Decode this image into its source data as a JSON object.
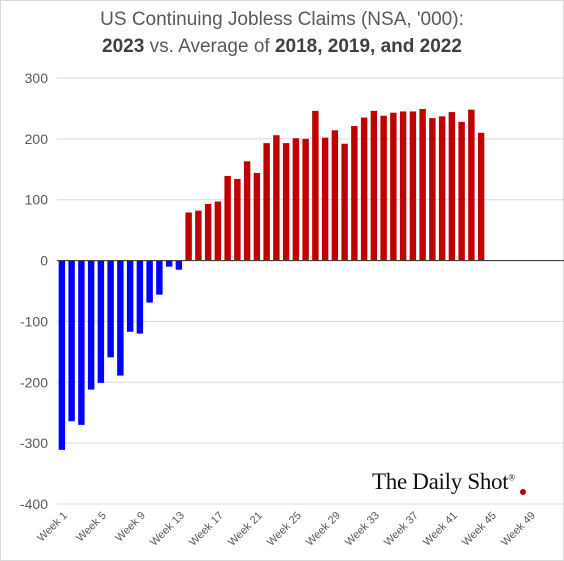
{
  "title": {
    "line1": "US Continuing Jobless Claims (NSA, '000):",
    "line2_part1": "2023",
    "line2_part2": " vs. Average of ",
    "line2_part3": "2018, 2019, and 2022"
  },
  "brand": {
    "text": "The Daily Shot",
    "mark": "®"
  },
  "chart_data": {
    "type": "bar",
    "ylim": [
      -400,
      300
    ],
    "yticks": [
      300,
      200,
      100,
      0,
      -100,
      -200,
      -300,
      -400
    ],
    "grid": true,
    "x_tick_labels": [
      "Week 1",
      "Week 5",
      "Week 9",
      "Week 13",
      "Week 17",
      "Week 21",
      "Week 25",
      "Week 29",
      "Week 33",
      "Week 37",
      "Week 41",
      "Week 45",
      "Week 49"
    ],
    "x_tick_weeks": [
      1,
      5,
      9,
      13,
      17,
      21,
      25,
      29,
      33,
      37,
      41,
      45,
      49
    ],
    "total_weeks": 52,
    "colors": {
      "negative": "#0000ff",
      "positive": "#c00000"
    },
    "weeks": [
      1,
      2,
      3,
      4,
      5,
      6,
      7,
      8,
      9,
      10,
      11,
      12,
      13,
      14,
      15,
      16,
      17,
      18,
      19,
      20,
      21,
      22,
      23,
      24,
      25,
      26,
      27,
      28,
      29,
      30,
      31,
      32,
      33,
      34,
      35,
      36,
      37,
      38,
      39,
      40,
      41,
      42,
      43,
      44,
      45
    ],
    "values": [
      -311,
      -264,
      -270,
      -212,
      -201,
      -159,
      -189,
      -117,
      -120,
      -69,
      -56,
      -10,
      -15,
      79,
      82,
      93,
      97,
      139,
      134,
      163,
      144,
      193,
      206,
      193,
      201,
      200,
      246,
      202,
      214,
      192,
      221,
      235,
      246,
      238,
      243,
      245,
      245,
      249,
      234,
      237,
      244,
      228,
      248,
      210,
      null
    ]
  }
}
